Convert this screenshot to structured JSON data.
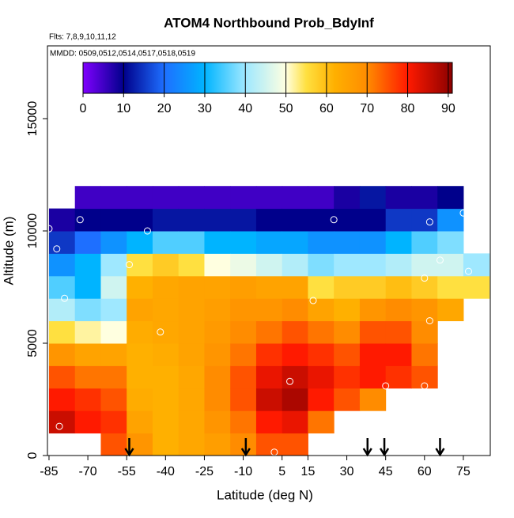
{
  "chart_data": {
    "type": "heatmap",
    "title": "ATOM4 Northbound Prob_BdyInf",
    "subtitle": "Flts: 7,8,9,10,11,12",
    "annotation": "MMDD: 0509,0512,0514,0517,0518,0519",
    "x_label": "Latitude (deg N)",
    "y_label": "Altitude (m)",
    "xlim": [
      -85.6,
      85.4
    ],
    "ylim": [
      0,
      18240
    ],
    "xticks": [
      -85,
      -70,
      -55,
      -40,
      -25,
      -10,
      5,
      15,
      30,
      45,
      60,
      75
    ],
    "yticks": [
      0,
      5000,
      10000,
      15000
    ],
    "x_edges": [
      -85,
      -75,
      -65,
      -55,
      -45,
      -35,
      -25,
      -15,
      -5,
      5,
      15,
      25,
      35,
      45,
      55,
      65,
      75,
      85
    ],
    "y_edges": [
      0,
      1000,
      2000,
      3000,
      4000,
      5000,
      6000,
      7000,
      8000,
      9000,
      10000,
      11000,
      12000
    ],
    "z": [
      [
        null,
        85,
        80,
        75,
        68,
        55,
        42,
        35,
        25,
        15,
        8,
        null
      ],
      [
        null,
        80,
        78,
        72,
        65,
        52,
        38,
        30,
        30,
        20,
        10,
        5
      ],
      [
        75,
        78,
        75,
        72,
        65,
        50,
        40,
        45,
        40,
        25,
        10,
        5
      ],
      [
        68,
        65,
        63,
        62,
        62,
        63,
        65,
        62,
        55,
        30,
        10,
        5
      ],
      [
        62,
        62,
        62,
        62,
        63,
        64,
        64,
        64,
        58,
        35,
        12,
        5
      ],
      [
        64,
        64,
        64,
        64,
        65,
        65,
        65,
        65,
        55,
        35,
        12,
        5
      ],
      [
        66,
        68,
        70,
        70,
        68,
        67,
        66,
        65,
        50,
        30,
        12,
        5
      ],
      [
        70,
        72,
        75,
        75,
        72,
        70,
        68,
        66,
        48,
        30,
        12,
        5
      ],
      [
        75,
        80,
        85,
        82,
        78,
        72,
        68,
        65,
        45,
        28,
        10,
        5
      ],
      [
        75,
        82,
        88,
        85,
        80,
        75,
        70,
        65,
        42,
        28,
        10,
        5
      ],
      [
        null,
        72,
        80,
        82,
        78,
        72,
        65,
        55,
        38,
        25,
        10,
        5
      ],
      [
        null,
        null,
        75,
        78,
        75,
        70,
        62,
        58,
        40,
        25,
        10,
        8
      ],
      [
        null,
        null,
        70,
        80,
        80,
        75,
        68,
        58,
        40,
        25,
        10,
        12
      ],
      [
        null,
        null,
        null,
        78,
        80,
        75,
        70,
        60,
        42,
        30,
        15,
        8
      ],
      [
        null,
        null,
        null,
        75,
        72,
        70,
        68,
        58,
        45,
        35,
        15,
        8
      ],
      [
        null,
        null,
        null,
        null,
        null,
        null,
        64,
        55,
        45,
        38,
        25,
        10
      ],
      [
        null,
        null,
        null,
        null,
        null,
        null,
        null,
        55,
        40,
        null,
        null,
        null
      ]
    ],
    "zlim": [
      0,
      91
    ],
    "zticks": [
      0,
      10,
      20,
      30,
      40,
      50,
      60,
      70,
      80,
      90
    ],
    "colorscale": [
      [
        0,
        "#8000ff"
      ],
      [
        10,
        "#00008b"
      ],
      [
        20,
        "#1e6fff"
      ],
      [
        30,
        "#00b4ff"
      ],
      [
        40,
        "#9fe8ff"
      ],
      [
        50,
        "#ffffe0"
      ],
      [
        55,
        "#ffe040"
      ],
      [
        62,
        "#ffb000"
      ],
      [
        70,
        "#ff8c00"
      ],
      [
        80,
        "#ff1a00"
      ],
      [
        91,
        "#8b0000"
      ]
    ],
    "points": {
      "x": [
        -85,
        -73,
        -82,
        -47,
        -54,
        -79,
        -42,
        -81,
        8,
        17,
        25,
        2,
        45,
        60,
        62,
        62,
        60,
        66,
        77,
        75
      ],
      "y": [
        10100,
        10500,
        9200,
        10000,
        8500,
        7000,
        5500,
        1300,
        3300,
        6900,
        10500,
        150,
        3100,
        3100,
        10400,
        6000,
        7900,
        8700,
        8200,
        10800
      ]
    },
    "arrows": [
      -54,
      -9,
      38,
      44.5,
      66
    ]
  }
}
